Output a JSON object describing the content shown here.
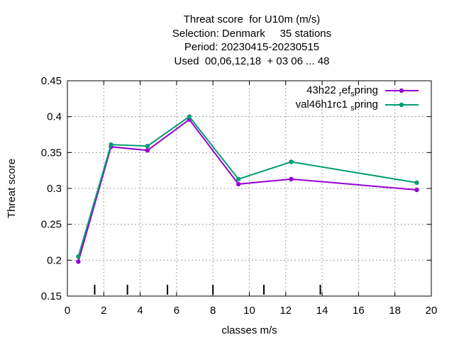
{
  "chart_data": {
    "type": "line",
    "title_lines": [
      "Threat score  for U10m (m/s)",
      "Selection: Denmark     35 stations",
      "Period: 20230415-20230515",
      "Used  00,06,12,18  + 03 06 ... 48"
    ],
    "xlabel": "classes m/s",
    "ylabel": "Threat score",
    "xlim": [
      0,
      20
    ],
    "ylim": [
      0.15,
      0.45
    ],
    "xticks": [
      "0",
      "2",
      "4",
      "6",
      "8",
      "10",
      "12",
      "14",
      "16",
      "18",
      "20"
    ],
    "yticks": [
      "0.15",
      "0.2",
      "0.25",
      "0.3",
      "0.35",
      "0.4",
      "0.45"
    ],
    "grid": true,
    "legend_position": "top-right",
    "class_boundaries": [
      1.5,
      3.3,
      5.5,
      8.0,
      10.8,
      13.9
    ],
    "series": [
      {
        "name": "43h22_ref_spring",
        "legend_parts": [
          "43h22 ",
          "r",
          "ef",
          "s",
          "pring"
        ],
        "color": "#9400d3",
        "x": [
          0.6,
          2.4,
          4.4,
          6.7,
          9.4,
          12.3,
          19.2
        ],
        "y": [
          0.198,
          0.358,
          0.353,
          0.396,
          0.306,
          0.313,
          0.298
        ]
      },
      {
        "name": "val46h1rc1_spring",
        "legend_parts": [
          "val46h1rc1 ",
          "s",
          "pring"
        ],
        "color": "#009e73",
        "x": [
          0.6,
          2.4,
          4.4,
          6.7,
          9.4,
          12.3,
          19.2
        ],
        "y": [
          0.205,
          0.361,
          0.359,
          0.4,
          0.313,
          0.337,
          0.308
        ]
      }
    ]
  }
}
